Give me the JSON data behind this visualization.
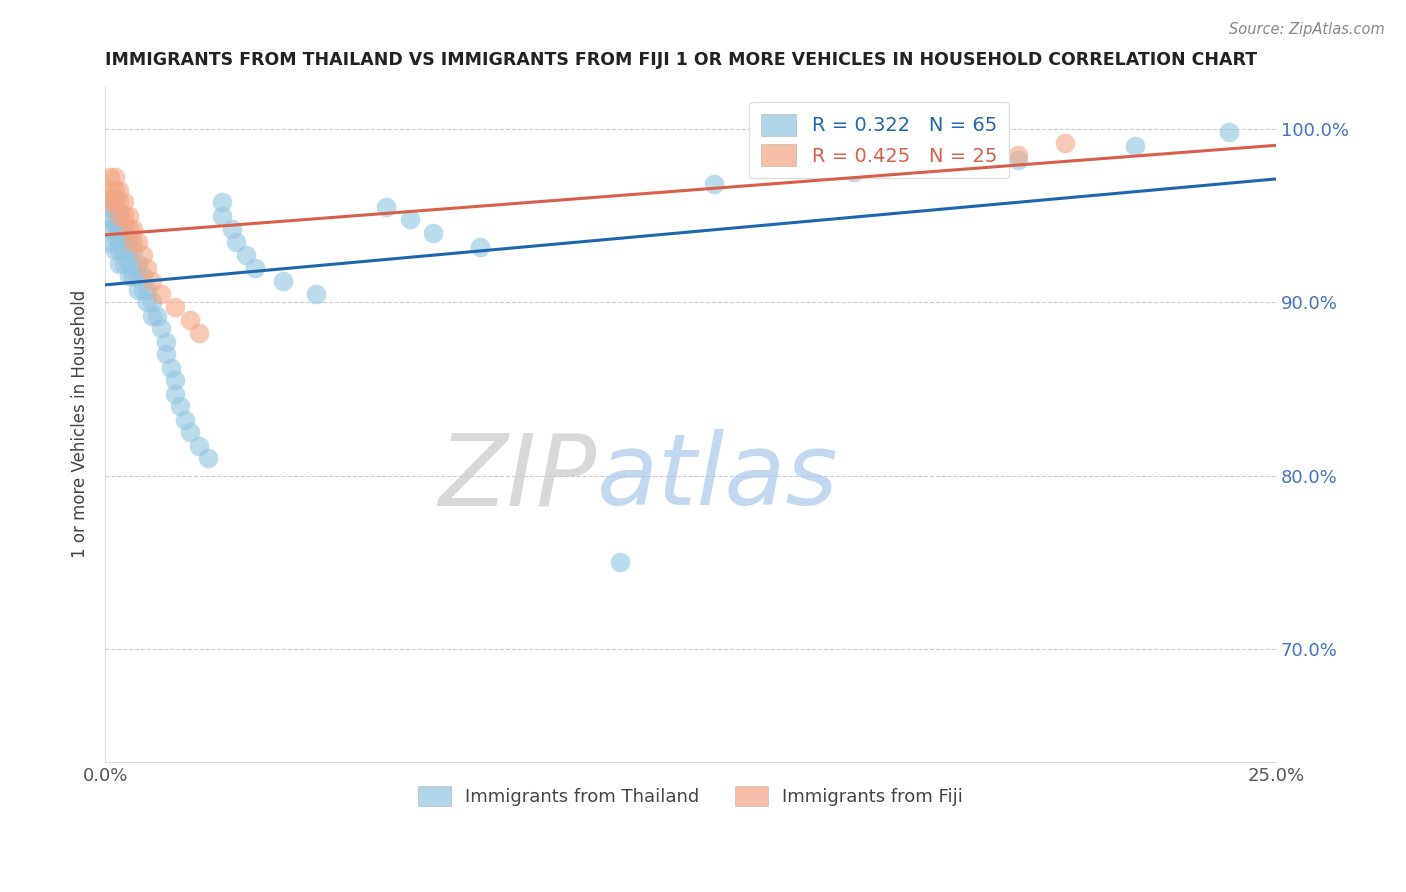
{
  "title": "IMMIGRANTS FROM THAILAND VS IMMIGRANTS FROM FIJI 1 OR MORE VEHICLES IN HOUSEHOLD CORRELATION CHART",
  "source": "Source: ZipAtlas.com",
  "ylabel": "1 or more Vehicles in Household",
  "x_min": 0.0,
  "x_max": 0.25,
  "y_min": 0.635,
  "y_max": 1.025,
  "x_tick_positions": [
    0.0,
    0.05,
    0.1,
    0.15,
    0.2,
    0.25
  ],
  "x_tick_labels": [
    "0.0%",
    "",
    "",
    "",
    "",
    "25.0%"
  ],
  "y_tick_positions": [
    0.7,
    0.8,
    0.9,
    1.0
  ],
  "y_tick_labels": [
    "70.0%",
    "80.0%",
    "90.0%",
    "100.0%"
  ],
  "legend_blue_label": "R = 0.322   N = 65",
  "legend_pink_label": "R = 0.425   N = 25",
  "legend_x1": "Immigrants from Thailand",
  "legend_x2": "Immigrants from Fiji",
  "blue_scatter_color": "#92c5de",
  "pink_scatter_color": "#f4a582",
  "blue_line_color": "#2166ac",
  "pink_line_color": "#d6604d",
  "watermark": "ZIPatlas",
  "thailand_x": [
    0.001,
    0.001,
    0.001,
    0.001,
    0.001,
    0.002,
    0.002,
    0.002,
    0.002,
    0.002,
    0.003,
    0.003,
    0.003,
    0.003,
    0.003,
    0.004,
    0.004,
    0.004,
    0.004,
    0.005,
    0.005,
    0.005,
    0.005,
    0.006,
    0.006,
    0.006,
    0.007,
    0.007,
    0.007,
    0.008,
    0.008,
    0.009,
    0.009,
    0.01,
    0.01,
    0.011,
    0.012,
    0.013,
    0.013,
    0.014,
    0.015,
    0.015,
    0.016,
    0.017,
    0.018,
    0.02,
    0.022,
    0.025,
    0.025,
    0.027,
    0.028,
    0.03,
    0.032,
    0.038,
    0.045,
    0.06,
    0.065,
    0.07,
    0.08,
    0.11,
    0.13,
    0.16,
    0.195,
    0.22,
    0.24
  ],
  "thailand_y": [
    0.96,
    0.955,
    0.948,
    0.942,
    0.935,
    0.96,
    0.952,
    0.945,
    0.938,
    0.93,
    0.952,
    0.945,
    0.938,
    0.93,
    0.922,
    0.945,
    0.938,
    0.93,
    0.922,
    0.938,
    0.93,
    0.922,
    0.915,
    0.93,
    0.922,
    0.915,
    0.922,
    0.915,
    0.907,
    0.915,
    0.907,
    0.907,
    0.9,
    0.9,
    0.892,
    0.892,
    0.885,
    0.877,
    0.87,
    0.862,
    0.855,
    0.847,
    0.84,
    0.832,
    0.825,
    0.817,
    0.81,
    0.958,
    0.95,
    0.942,
    0.935,
    0.927,
    0.92,
    0.912,
    0.905,
    0.955,
    0.948,
    0.94,
    0.932,
    0.75,
    0.968,
    0.975,
    0.982,
    0.99,
    0.998
  ],
  "fiji_x": [
    0.001,
    0.001,
    0.001,
    0.002,
    0.002,
    0.002,
    0.003,
    0.003,
    0.003,
    0.004,
    0.004,
    0.005,
    0.005,
    0.006,
    0.006,
    0.007,
    0.008,
    0.009,
    0.01,
    0.012,
    0.015,
    0.018,
    0.02,
    0.195,
    0.205
  ],
  "fiji_y": [
    0.972,
    0.965,
    0.958,
    0.972,
    0.965,
    0.958,
    0.965,
    0.958,
    0.95,
    0.958,
    0.95,
    0.95,
    0.942,
    0.942,
    0.935,
    0.935,
    0.927,
    0.92,
    0.912,
    0.905,
    0.897,
    0.89,
    0.882,
    0.985,
    0.992
  ],
  "blue_trendline": [
    0.882,
    1.0
  ],
  "pink_trendline": [
    0.95,
    1.0
  ]
}
